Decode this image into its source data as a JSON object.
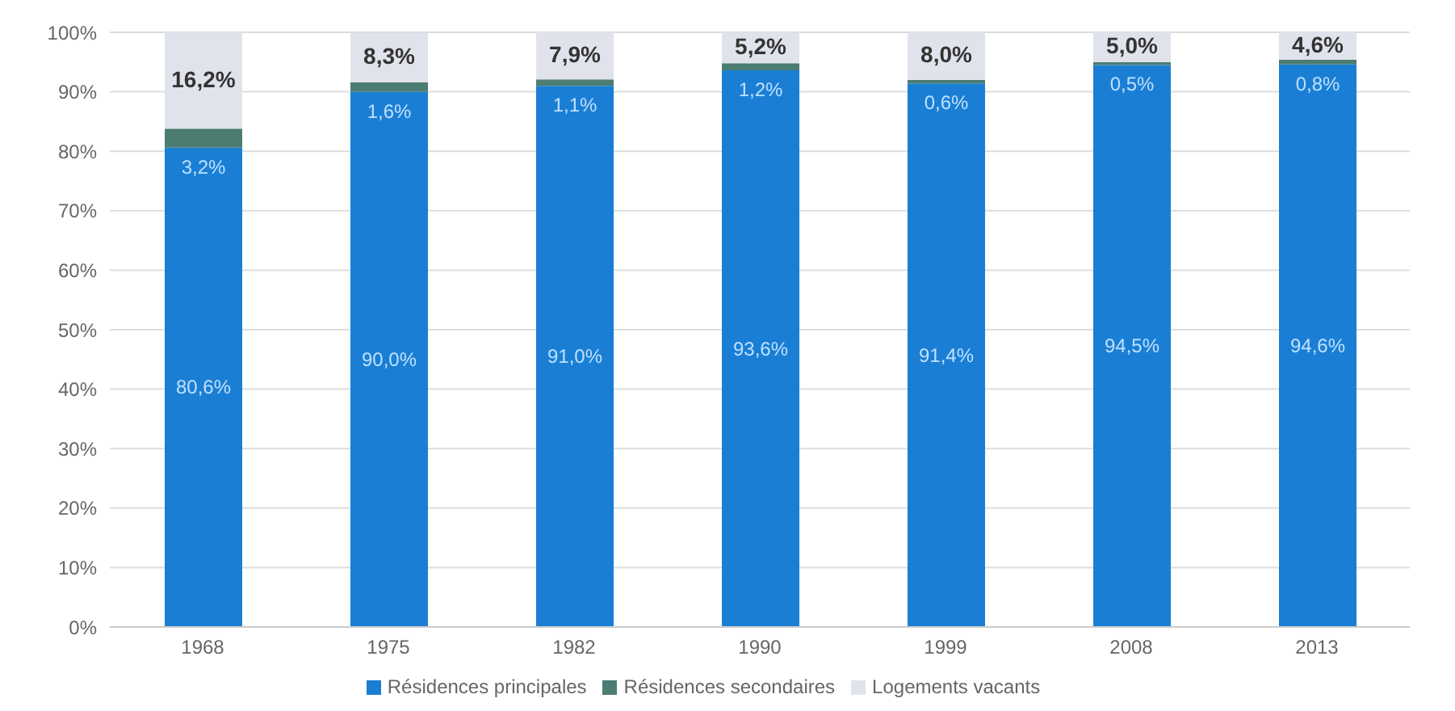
{
  "chart_data": {
    "type": "bar",
    "stacked": true,
    "categories": [
      "1968",
      "1975",
      "1982",
      "1990",
      "1999",
      "2008",
      "2013"
    ],
    "series": [
      {
        "name": "Résidences principales",
        "color": "#1a7fd4",
        "values": [
          80.6,
          90.0,
          91.0,
          93.6,
          91.4,
          94.5,
          94.6
        ],
        "value_labels": [
          "80,6%",
          "90,0%",
          "91,0%",
          "93,6%",
          "91,4%",
          "94,5%",
          "94,6%"
        ]
      },
      {
        "name": "Résidences secondaires",
        "color": "#4b7d72",
        "values": [
          3.2,
          1.6,
          1.1,
          1.2,
          0.6,
          0.5,
          0.8
        ],
        "value_labels": [
          "3,2%",
          "1,6%",
          "1,1%",
          "1,2%",
          "0,6%",
          "0,5%",
          "0,8%"
        ]
      },
      {
        "name": "Logements vacants",
        "color": "#e1e3ec",
        "values": [
          16.2,
          8.3,
          7.9,
          5.2,
          8.0,
          5.0,
          4.6
        ],
        "value_labels": [
          "16,2%",
          "8,3%",
          "7,9%",
          "5,2%",
          "8,0%",
          "5,0%",
          "4,6%"
        ]
      }
    ],
    "ylim": [
      0,
      100
    ],
    "yticks": [
      {
        "value": 0,
        "label": "0%"
      },
      {
        "value": 10,
        "label": "10%"
      },
      {
        "value": 20,
        "label": "20%"
      },
      {
        "value": 30,
        "label": "30%"
      },
      {
        "value": 40,
        "label": "40%"
      },
      {
        "value": 50,
        "label": "50%"
      },
      {
        "value": 60,
        "label": "60%"
      },
      {
        "value": 70,
        "label": "70%"
      },
      {
        "value": 80,
        "label": "80%"
      },
      {
        "value": 90,
        "label": "90%"
      },
      {
        "value": 100,
        "label": "100%"
      }
    ],
    "grid": "y",
    "legend": "bottom"
  }
}
